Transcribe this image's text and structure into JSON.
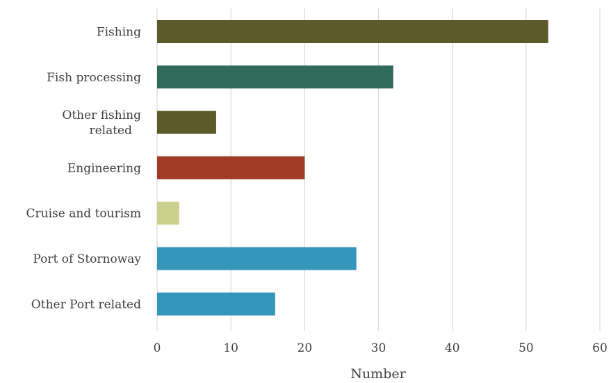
{
  "chart_data": {
    "type": "bar",
    "orientation": "horizontal",
    "categories": [
      "Fishing",
      "Fish processing",
      "Other fishing related",
      "Engineering",
      "Cruise and tourism",
      "Port of Stornoway",
      "Other Port related"
    ],
    "category_lines": [
      [
        "Fishing"
      ],
      [
        "Fish processing"
      ],
      [
        "Other fishing",
        "related"
      ],
      [
        "Engineering"
      ],
      [
        "Cruise and tourism"
      ],
      [
        "Port of Stornoway"
      ],
      [
        "Other Port related"
      ]
    ],
    "values": [
      53,
      32,
      8,
      20,
      3,
      27,
      16
    ],
    "colors": [
      "#5c5a2a",
      "#2f6a5a",
      "#5c5a2a",
      "#a03b28",
      "#cbd18a",
      "#3596bc",
      "#3596bc"
    ],
    "xlabel": "Number",
    "ylabel": "",
    "title": "",
    "xlim": [
      0,
      60
    ],
    "xticks": [
      0,
      10,
      20,
      30,
      40,
      50,
      60
    ],
    "grid": true,
    "legend": "none"
  }
}
